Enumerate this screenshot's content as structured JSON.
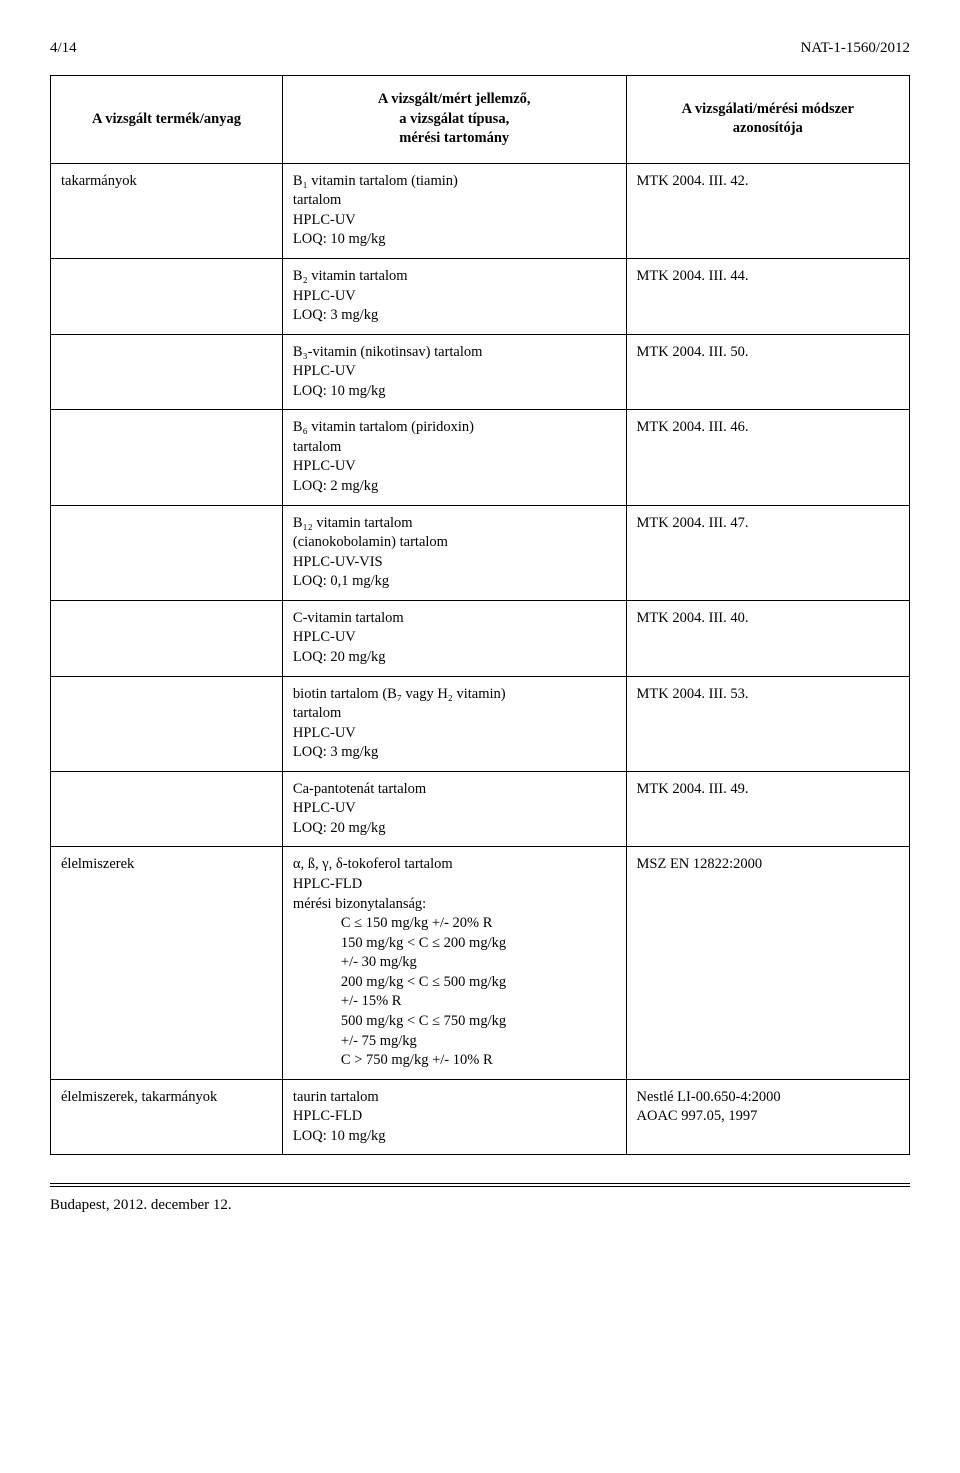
{
  "header": {
    "page_indicator": "4/14",
    "doc_id": "NAT-1-1560/2012"
  },
  "table": {
    "col_widths": [
      "27%",
      "40%",
      "33%"
    ],
    "headers": {
      "a": "A vizsgált termék/anyag",
      "b_line1": "A vizsgált/mért jellemző,",
      "b_line2": "a vizsgálat típusa,",
      "b_line3": "mérési tartomány",
      "c_line1": "A vizsgálati/mérési módszer",
      "c_line2": "azonosítója"
    },
    "rows": [
      {
        "a": "takarmányok",
        "b_l1": "B₁ vitamin tartalom (tiamin)",
        "b_l2": "tartalom",
        "b_l3": "HPLC-UV",
        "b_l4": "LOQ: 10 mg/kg",
        "c": "MTK 2004. III. 42."
      },
      {
        "a": "",
        "b_l1": "B₂ vitamin tartalom",
        "b_l2": "HPLC-UV",
        "b_l3": "LOQ: 3 mg/kg",
        "c": "MTK 2004. III. 44."
      },
      {
        "a": "",
        "b_l1": "B₃-vitamin (nikotinsav) tartalom",
        "b_l2": "HPLC-UV",
        "b_l3": "LOQ: 10 mg/kg",
        "c": "MTK 2004. III. 50."
      },
      {
        "a": "",
        "b_l1": "B₆ vitamin tartalom (piridoxin)",
        "b_l2": "tartalom",
        "b_l3": "HPLC-UV",
        "b_l4": "LOQ: 2 mg/kg",
        "c": "MTK 2004. III. 46."
      },
      {
        "a": "",
        "b_l1": "B₁₂ vitamin tartalom",
        "b_l2": "(cianokobolamin) tartalom",
        "b_l3": "HPLC-UV-VIS",
        "b_l4": "LOQ: 0,1 mg/kg",
        "c": "MTK 2004. III. 47."
      },
      {
        "a": "",
        "b_l1": "C-vitamin tartalom",
        "b_l2": "HPLC-UV",
        "b_l3": "LOQ: 20 mg/kg",
        "c": "MTK 2004. III. 40."
      },
      {
        "a": "",
        "b_l1": "biotin tartalom (B₇ vagy H₂ vitamin)",
        "b_l2": "tartalom",
        "b_l3": "HPLC-UV",
        "b_l4": "LOQ: 3 mg/kg",
        "c": "MTK 2004. III. 53."
      },
      {
        "a": "",
        "b_l1": "Ca-pantotenát tartalom",
        "b_l2": "HPLC-UV",
        "b_l3": "LOQ: 20 mg/kg",
        "c": "MTK 2004. III. 49."
      },
      {
        "a": "élelmiszerek",
        "b_l1": "α, ß, γ, δ-tokoferol tartalom",
        "b_l2": "HPLC-FLD",
        "b_l3": "mérési bizonytalanság:",
        "b_i1": "C ≤ 150 mg/kg +/- 20% R",
        "b_i2": "150 mg/kg < C ≤ 200 mg/kg",
        "b_i3": "+/- 30 mg/kg",
        "b_i4": "200 mg/kg < C ≤ 500 mg/kg",
        "b_i5": "+/- 15% R",
        "b_i6": "500 mg/kg < C ≤ 750 mg/kg",
        "b_i7": "+/- 75 mg/kg",
        "b_i8": "C > 750 mg/kg +/- 10% R",
        "c": "MSZ EN 12822:2000"
      },
      {
        "a": "élelmiszerek, takarmányok",
        "b_l1": "taurin tartalom",
        "b_l2": "HPLC-FLD",
        "b_l3": "LOQ: 10 mg/kg",
        "c_l1": "Nestlé LI-00.650-4:2000",
        "c_l2": "AOAC 997.05, 1997"
      }
    ]
  },
  "footer": "Budapest, 2012. december 12."
}
